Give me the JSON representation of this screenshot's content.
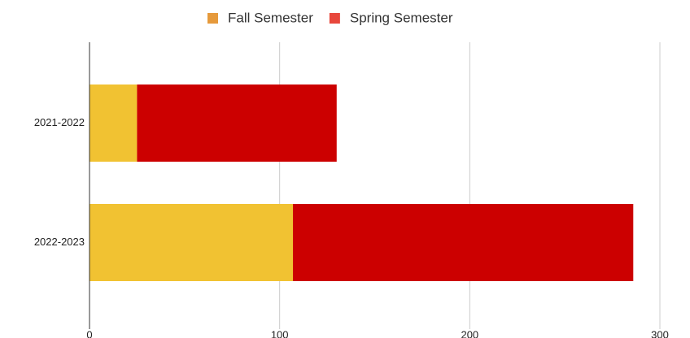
{
  "chart_data": {
    "type": "stacked_barh",
    "categories": [
      "2021-2022",
      "2022-2023"
    ],
    "series": [
      {
        "name": "Fall Semester",
        "color": "#f1c232",
        "legend_color": "#e69a3c",
        "values": [
          25,
          107
        ]
      },
      {
        "name": "Spring Semester",
        "color": "#cc0000",
        "legend_color": "#e8473c",
        "values": [
          105,
          179
        ]
      }
    ],
    "xlim": [
      0,
      300
    ],
    "xticks": [
      0,
      100,
      200,
      300
    ],
    "grid": true,
    "legend": "top"
  }
}
